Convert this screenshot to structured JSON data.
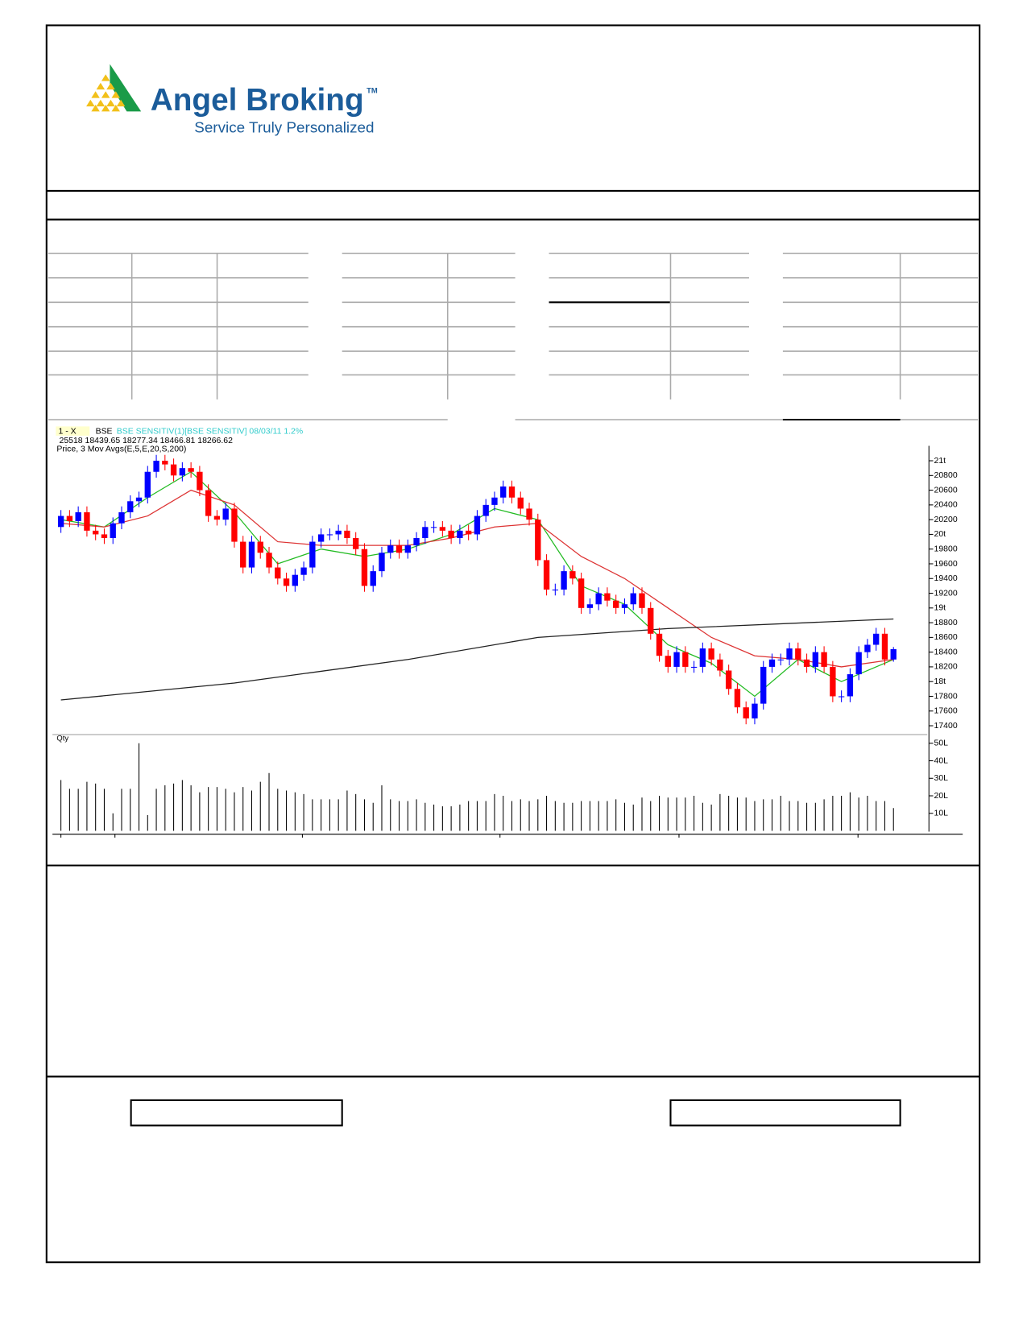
{
  "header": {
    "brand": "Angel Broking",
    "trademark": "TM",
    "tagline": "Service Truly Personalized"
  },
  "chart_data": {
    "type": "candlestick",
    "legend_prefix": "1 - X",
    "exchange": "BSE",
    "instrument": "BSE SENSITIV(1)[BSE SENSITIV] 08/03/11  1.2%",
    "quote": "25518 18439.65 18277.34 18466.81 18266.62",
    "indicator": "Price, 3 Mov Avgs(E,5,E,20,S,200)",
    "up_color": "#0000ff",
    "down_color": "#ff0000",
    "ohlc": [
      [
        20100,
        20330,
        20020,
        20250
      ],
      [
        20250,
        20330,
        20100,
        20180
      ],
      [
        20180,
        20380,
        20100,
        20300
      ],
      [
        20300,
        20380,
        19970,
        20050
      ],
      [
        20050,
        20130,
        19920,
        20000
      ],
      [
        20000,
        20080,
        19870,
        19950
      ],
      [
        19950,
        20230,
        19870,
        20150
      ],
      [
        20150,
        20380,
        20070,
        20300
      ],
      [
        20300,
        20530,
        20220,
        20450
      ],
      [
        20450,
        20580,
        20370,
        20500
      ],
      [
        20500,
        20930,
        20420,
        20850
      ],
      [
        20850,
        21080,
        20770,
        21000
      ],
      [
        21000,
        21080,
        20870,
        20950
      ],
      [
        20950,
        21030,
        20720,
        20800
      ],
      [
        20800,
        20980,
        20720,
        20900
      ],
      [
        20900,
        20980,
        20770,
        20850
      ],
      [
        20850,
        20930,
        20520,
        20600
      ],
      [
        20600,
        20680,
        20170,
        20250
      ],
      [
        20250,
        20330,
        20120,
        20200
      ],
      [
        20200,
        20430,
        20120,
        20350
      ],
      [
        20350,
        20430,
        19820,
        19900
      ],
      [
        19900,
        19980,
        19470,
        19550
      ],
      [
        19550,
        19980,
        19470,
        19900
      ],
      [
        19900,
        19980,
        19670,
        19750
      ],
      [
        19750,
        19830,
        19470,
        19550
      ],
      [
        19550,
        19630,
        19320,
        19400
      ],
      [
        19400,
        19480,
        19220,
        19300
      ],
      [
        19300,
        19530,
        19220,
        19450
      ],
      [
        19450,
        19630,
        19370,
        19550
      ],
      [
        19550,
        19980,
        19470,
        19900
      ],
      [
        19900,
        20080,
        19820,
        20000
      ],
      [
        20000,
        20080,
        19920,
        20000
      ],
      [
        20000,
        20130,
        19920,
        20050
      ],
      [
        20050,
        20130,
        19870,
        19950
      ],
      [
        19950,
        20030,
        19720,
        19800
      ],
      [
        19800,
        19880,
        19220,
        19300
      ],
      [
        19300,
        19580,
        19220,
        19500
      ],
      [
        19500,
        19830,
        19420,
        19750
      ],
      [
        19750,
        19930,
        19670,
        19850
      ],
      [
        19850,
        19930,
        19670,
        19750
      ],
      [
        19750,
        19930,
        19670,
        19850
      ],
      [
        19850,
        20030,
        19770,
        19950
      ],
      [
        19950,
        20180,
        19870,
        20100
      ],
      [
        20100,
        20180,
        20020,
        20100
      ],
      [
        20100,
        20180,
        19970,
        20050
      ],
      [
        20050,
        20130,
        19870,
        19950
      ],
      [
        19950,
        20130,
        19870,
        20050
      ],
      [
        20050,
        20130,
        19920,
        20000
      ],
      [
        20000,
        20330,
        19920,
        20250
      ],
      [
        20250,
        20480,
        20170,
        20400
      ],
      [
        20400,
        20580,
        20320,
        20500
      ],
      [
        20500,
        20730,
        20420,
        20650
      ],
      [
        20650,
        20730,
        20420,
        20500
      ],
      [
        20500,
        20580,
        20270,
        20350
      ],
      [
        20350,
        20430,
        20120,
        20200
      ],
      [
        20200,
        20280,
        19570,
        19650
      ],
      [
        19650,
        19730,
        19170,
        19250
      ],
      [
        19250,
        19330,
        19170,
        19250
      ],
      [
        19250,
        19580,
        19170,
        19500
      ],
      [
        19500,
        19580,
        19320,
        19400
      ],
      [
        19400,
        19480,
        18920,
        19000
      ],
      [
        19000,
        19130,
        18920,
        19050
      ],
      [
        19050,
        19280,
        18970,
        19200
      ],
      [
        19200,
        19280,
        19020,
        19100
      ],
      [
        19100,
        19180,
        18920,
        19000
      ],
      [
        19000,
        19130,
        18920,
        19050
      ],
      [
        19050,
        19280,
        18970,
        19200
      ],
      [
        19200,
        19280,
        18920,
        19000
      ],
      [
        19000,
        19080,
        18570,
        18650
      ],
      [
        18650,
        18730,
        18270,
        18350
      ],
      [
        18350,
        18430,
        18120,
        18200
      ],
      [
        18200,
        18480,
        18120,
        18400
      ],
      [
        18400,
        18480,
        18120,
        18200
      ],
      [
        18200,
        18280,
        18120,
        18200
      ],
      [
        18200,
        18530,
        18120,
        18450
      ],
      [
        18450,
        18530,
        18220,
        18300
      ],
      [
        18300,
        18380,
        18070,
        18150
      ],
      [
        18150,
        18230,
        17820,
        17900
      ],
      [
        17900,
        17980,
        17570,
        17650
      ],
      [
        17650,
        17730,
        17420,
        17500
      ],
      [
        17500,
        17780,
        17420,
        17700
      ],
      [
        17700,
        18280,
        17620,
        18200
      ],
      [
        18200,
        18380,
        18120,
        18300
      ],
      [
        18300,
        18380,
        18220,
        18300
      ],
      [
        18300,
        18530,
        18220,
        18450
      ],
      [
        18450,
        18530,
        18220,
        18300
      ],
      [
        18300,
        18380,
        18120,
        18200
      ],
      [
        18200,
        18480,
        18120,
        18400
      ],
      [
        18400,
        18480,
        18120,
        18200
      ],
      [
        18200,
        18280,
        17720,
        17800
      ],
      [
        17800,
        17880,
        17720,
        17800
      ],
      [
        17800,
        18180,
        17720,
        18100
      ],
      [
        18100,
        18480,
        18020,
        18400
      ],
      [
        18400,
        18580,
        18320,
        18500
      ],
      [
        18500,
        18730,
        18420,
        18650
      ],
      [
        18650,
        18730,
        18220,
        18300
      ],
      [
        18300,
        18470,
        18270,
        18440
      ]
    ],
    "moving_averages": [
      {
        "color": "#22bb22",
        "x": [
          0,
          5,
          10,
          15,
          20,
          25,
          30,
          35,
          40,
          45,
          50,
          55,
          60,
          65,
          70,
          75,
          80,
          85,
          90,
          96
        ],
        "values": [
          20200,
          20100,
          20500,
          20850,
          20300,
          19600,
          19800,
          19700,
          19800,
          20000,
          20350,
          20200,
          19300,
          19050,
          18500,
          18250,
          17800,
          18300,
          18000,
          18300
        ]
      },
      {
        "color": "#dd3333",
        "x": [
          0,
          5,
          10,
          15,
          20,
          25,
          30,
          35,
          40,
          45,
          50,
          55,
          60,
          65,
          70,
          75,
          80,
          85,
          90,
          96
        ],
        "values": [
          20150,
          20100,
          20250,
          20600,
          20400,
          19900,
          19850,
          19850,
          19850,
          19950,
          20100,
          20150,
          19700,
          19400,
          19000,
          18600,
          18350,
          18300,
          18200,
          18300
        ]
      },
      {
        "color": "#222222",
        "x": [
          0,
          20,
          40,
          55,
          70,
          96
        ],
        "values": [
          17750,
          17980,
          18300,
          18600,
          18720,
          18850
        ]
      }
    ],
    "ylim": [
      17280,
      21180
    ],
    "yticks": [
      17400,
      17600,
      17800,
      {
        "value": 18000,
        "label": "18t"
      },
      18200,
      18400,
      18600,
      18800,
      {
        "value": 19000,
        "label": "19t"
      },
      19200,
      19400,
      19600,
      19800,
      {
        "value": 20000,
        "label": "20t"
      },
      20200,
      20400,
      20600,
      20800,
      {
        "value": 21000,
        "label": "21t"
      }
    ],
    "volume": {
      "label": "Qty",
      "color": "#000000",
      "ylim": [
        0,
        55
      ],
      "yticks": [
        {
          "value": 10,
          "label": "10L"
        },
        {
          "value": 20,
          "label": "20L"
        },
        {
          "value": 30,
          "label": "30L"
        },
        {
          "value": 40,
          "label": "40L"
        },
        {
          "value": 50,
          "label": "50L"
        }
      ],
      "values": [
        29,
        24,
        24,
        28,
        27,
        24,
        10,
        24,
        24,
        50,
        9,
        24,
        26,
        27,
        29,
        26,
        22,
        25,
        25,
        24,
        22,
        25,
        23,
        28,
        33,
        24,
        23,
        22,
        21,
        18,
        18,
        18,
        18,
        23,
        21,
        18,
        16,
        26,
        18,
        17,
        17,
        18,
        16,
        15,
        14,
        14,
        15,
        17,
        17,
        17,
        21,
        20,
        17,
        18,
        17,
        18,
        20,
        17,
        16,
        16,
        17,
        17,
        17,
        17,
        18,
        16,
        15,
        19,
        17,
        20,
        19,
        19,
        19,
        20,
        16,
        15,
        21,
        20,
        19,
        19,
        17,
        18,
        18,
        20,
        17,
        17,
        16,
        16,
        18,
        20,
        20,
        22,
        19,
        20,
        17,
        17,
        13
      ]
    }
  }
}
